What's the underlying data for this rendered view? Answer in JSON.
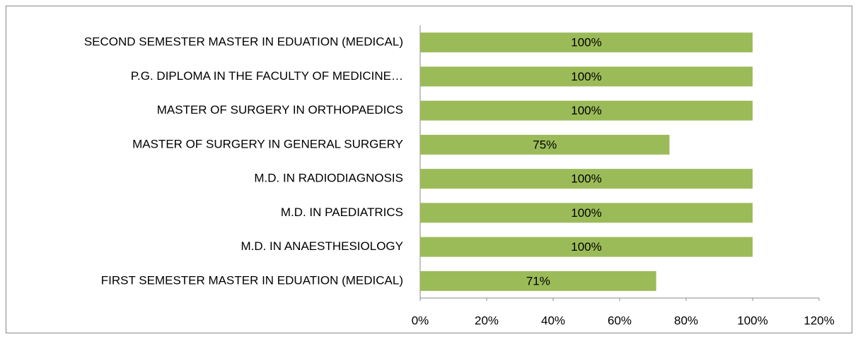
{
  "chart_data": {
    "type": "barh",
    "categories": [
      "SECOND SEMESTER MASTER IN EDUATION (MEDICAL)",
      "P.G. DIPLOMA IN THE FACULTY OF MEDICINE…",
      "MASTER OF SURGERY IN ORTHOPAEDICS",
      "MASTER OF SURGERY IN GENERAL SURGERY",
      "M.D. IN RADIODIAGNOSIS",
      "M.D. IN PAEDIATRICS",
      "M.D. IN ANAESTHESIOLOGY",
      "FIRST SEMESTER MASTER IN EDUATION (MEDICAL)"
    ],
    "values": [
      100,
      100,
      100,
      75,
      100,
      100,
      100,
      71
    ],
    "value_labels": [
      "100%",
      "100%",
      "100%",
      "75%",
      "100%",
      "100%",
      "100%",
      "71%"
    ],
    "color": "#9bbb59",
    "xlim": [
      0,
      120
    ],
    "xticks": [
      {
        "value": 0,
        "label": "0%"
      },
      {
        "value": 20,
        "label": "20%"
      },
      {
        "value": 40,
        "label": "40%"
      },
      {
        "value": 60,
        "label": "60%"
      },
      {
        "value": 80,
        "label": "80%"
      },
      {
        "value": 100,
        "label": "100%"
      },
      {
        "value": 120,
        "label": "120%"
      }
    ]
  }
}
